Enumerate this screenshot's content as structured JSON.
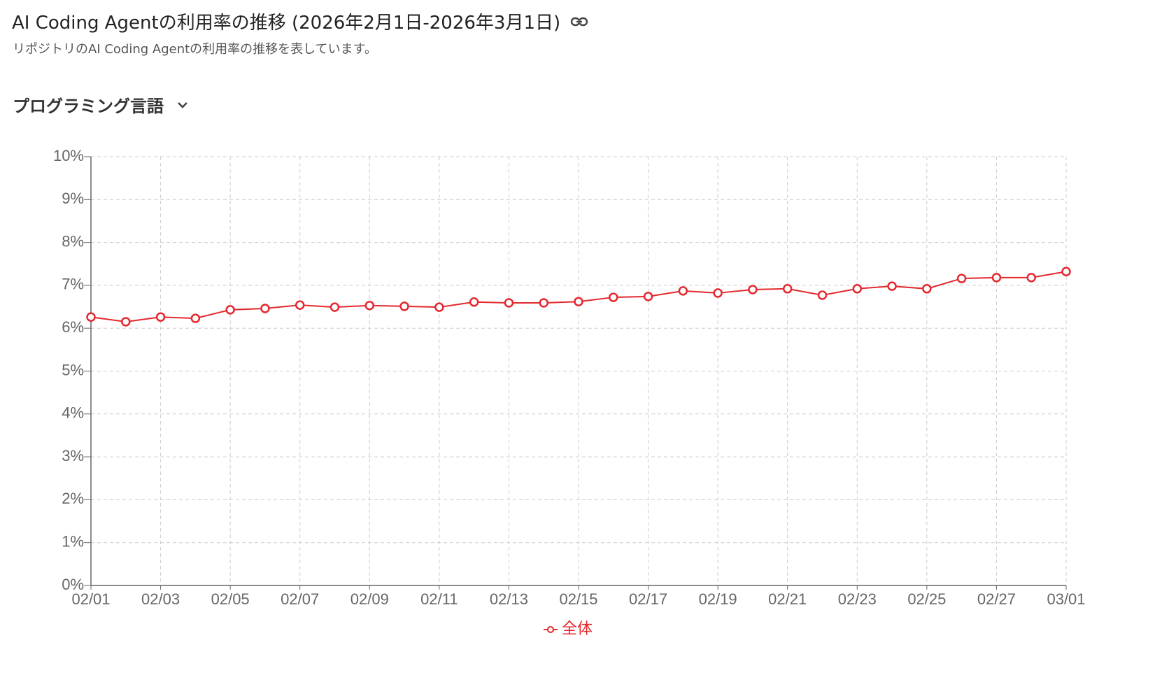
{
  "header": {
    "title": "AI Coding Agentの利用率の推移 (2026年2月1日-2026年3月1日)",
    "subtitle": "リポジトリのAI Coding Agentの利用率の推移を表しています。"
  },
  "filter": {
    "label": "プログラミング言語"
  },
  "chart_data": {
    "type": "line",
    "categories": [
      "02/01",
      null,
      "02/03",
      null,
      "02/05",
      null,
      "02/07",
      null,
      "02/09",
      null,
      "02/11",
      null,
      "02/13",
      null,
      "02/15",
      null,
      "02/17",
      null,
      "02/19",
      null,
      "02/21",
      null,
      "02/23",
      null,
      "02/25",
      null,
      "02/27",
      null,
      "03/01"
    ],
    "series": [
      {
        "name": "全体",
        "color": "#e4282e",
        "values": [
          6.26,
          6.15,
          6.26,
          6.23,
          6.43,
          6.46,
          6.54,
          6.49,
          6.53,
          6.51,
          6.49,
          6.61,
          6.59,
          6.59,
          6.62,
          6.72,
          6.74,
          6.87,
          6.82,
          6.9,
          6.92,
          6.77,
          6.92,
          6.98,
          6.92,
          7.16,
          7.18,
          7.18,
          7.32
        ]
      }
    ],
    "ylim": [
      0,
      10
    ],
    "yticks": [
      {
        "value": 0,
        "label": "0%"
      },
      {
        "value": 1,
        "label": "1%"
      },
      {
        "value": 2,
        "label": "2%"
      },
      {
        "value": 3,
        "label": "3%"
      },
      {
        "value": 4,
        "label": "4%"
      },
      {
        "value": 5,
        "label": "5%"
      },
      {
        "value": 6,
        "label": "6%"
      },
      {
        "value": 7,
        "label": "7%"
      },
      {
        "value": 8,
        "label": "8%"
      },
      {
        "value": 9,
        "label": "9%"
      },
      {
        "value": 10,
        "label": "10%"
      }
    ],
    "grid": true,
    "legend": "bottom"
  }
}
